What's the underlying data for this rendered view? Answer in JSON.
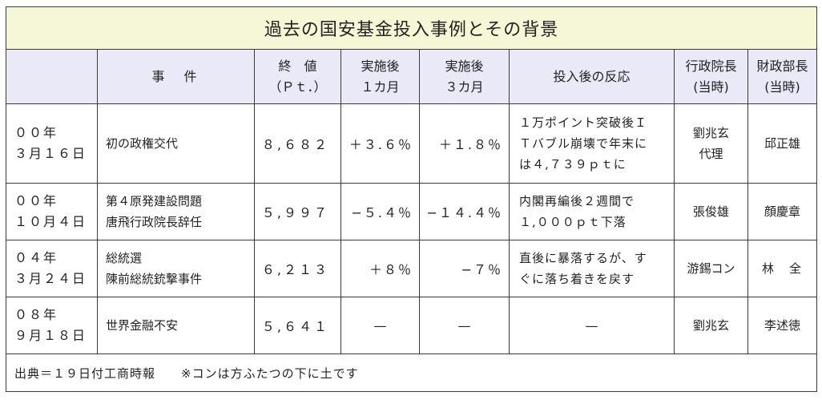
{
  "title": "過去の国安基金投入事例とその背景",
  "headers": {
    "event": "事　件",
    "close_line1": "終　値",
    "close_line2": "（Ｐｔ．）",
    "after1_line1": "実施後",
    "after1_line2": "１カ月",
    "after3_line1": "実施後",
    "after3_line2": "３カ月",
    "reaction": "投入後の反応",
    "premier_line1": "行政院長",
    "premier_line2": "(当時)",
    "finance_line1": "財政部長",
    "finance_line2": "(当時)"
  },
  "rows": [
    {
      "date_year": "００年",
      "date_day": "３月１６日",
      "event_lines": [
        "初の政権交代"
      ],
      "close": "８,６８２",
      "after1": "＋３.６％",
      "after3": "＋１.８％",
      "reaction_lines": [
        "１万ポイント突破後Ｉ",
        "Ｔバブル崩壊で年末に",
        "は４,７３９ｐｔに"
      ],
      "premier_lines": [
        "劉兆玄",
        "代理"
      ],
      "finance": "邱正雄"
    },
    {
      "date_year": "００年",
      "date_day": "１０月４日",
      "event_lines": [
        "第４原発建設問題",
        "唐飛行政院長辞任"
      ],
      "close": "５,９９７",
      "after1": "−５.４％",
      "after3": "−１４.４％",
      "reaction_lines": [
        "内閣再編後２週間で",
        "１,０００ｐｔ下落"
      ],
      "premier_lines": [
        "張俊雄"
      ],
      "finance": "顔慶章"
    },
    {
      "date_year": "０４年",
      "date_day": "３月２４日",
      "event_lines": [
        "総統選",
        "陳前総統銃撃事件"
      ],
      "close": "６,２１３",
      "after1": "＋８％",
      "after3": "−７％",
      "reaction_lines": [
        "直後に暴落するが、す",
        "ぐに落ち着きを戻す"
      ],
      "premier_lines": [
        "游錫コン"
      ],
      "finance": "林　全"
    },
    {
      "date_year": "０８年",
      "date_day": "９月１８日",
      "event_lines": [
        "世界金融不安"
      ],
      "close": "５,６４１",
      "after1": "—",
      "after3": "—",
      "reaction_lines": [
        "—"
      ],
      "premier_lines": [
        "劉兆玄"
      ],
      "finance": "李述徳"
    }
  ],
  "footer": "出典＝１９日付工商時報　　※コンは方ふたつの下に土です",
  "colors": {
    "title_bg": "#f6f7d6",
    "header_bg": "#e9e9f8",
    "border": "#3a3a3a"
  }
}
